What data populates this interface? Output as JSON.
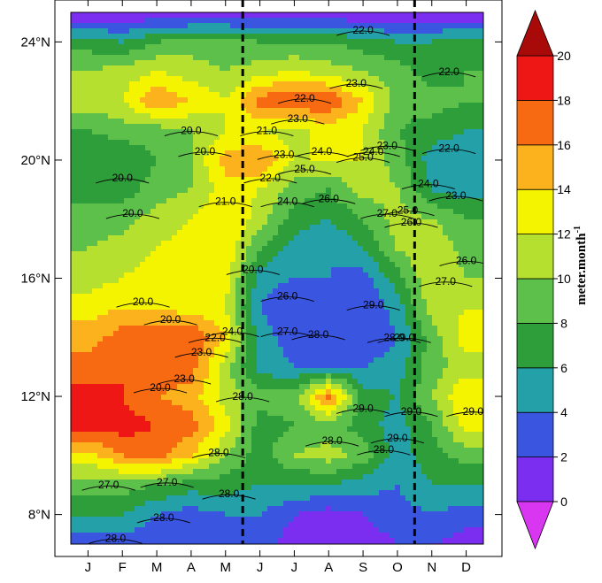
{
  "chart_data": {
    "type": "heatmap",
    "subtype": "hovmoller latitude-time with contour overlay",
    "title": "",
    "xlabel": "",
    "ylabel": "",
    "x_tick_labels": [
      "J",
      "F",
      "M",
      "A",
      "M",
      "J",
      "J",
      "A",
      "S",
      "O",
      "N",
      "D"
    ],
    "y_tick_labels": [
      "8°N",
      "12°N",
      "16°N",
      "20°N",
      "24°N"
    ],
    "y_tick_values": [
      8,
      12,
      16,
      20,
      24
    ],
    "ylim": [
      7.0,
      25.0
    ],
    "xlim": [
      0.5,
      12.5
    ],
    "colorbar": {
      "label": "meter.month",
      "label_superscript": "-1",
      "levels": [
        0,
        2,
        4,
        6,
        8,
        10,
        12,
        14,
        16,
        18,
        20
      ],
      "tick_labels": [
        "0",
        "2",
        "4",
        "6",
        "8",
        "10",
        "12",
        "14",
        "16",
        "18",
        "20"
      ],
      "extend": "both",
      "colors": [
        "#d936f2",
        "#7b2ef0",
        "#3a55e0",
        "#24a0a8",
        "#2e9e3a",
        "#5cc04a",
        "#b5e030",
        "#f4f400",
        "#fbb21c",
        "#f86a12",
        "#ef1616",
        "#a80a0a"
      ]
    },
    "dashed_vertical_lines_month": [
      5.5,
      10.5
    ],
    "heat_field": {
      "months": [
        1,
        2,
        3,
        4,
        5,
        6,
        7,
        8,
        9,
        10,
        11,
        12
      ],
      "latitudes": [
        7,
        8,
        9,
        10,
        11,
        12,
        13,
        14,
        15,
        16,
        17,
        18,
        19,
        20,
        21,
        22,
        23,
        24,
        25
      ],
      "values": [
        [
          3,
          3,
          2,
          2,
          3,
          3,
          1,
          0,
          1,
          2,
          2,
          1
        ],
        [
          6,
          6,
          4,
          3,
          4,
          4,
          2,
          1,
          2,
          3,
          4,
          3
        ],
        [
          9,
          9,
          8,
          7,
          7,
          6,
          6,
          6,
          5,
          4,
          6,
          6
        ],
        [
          13,
          16,
          17,
          14,
          10,
          7,
          10,
          11,
          9,
          5,
          7,
          9
        ],
        [
          19,
          19,
          18,
          17,
          13,
          7,
          8,
          9,
          7,
          5,
          8,
          13
        ],
        [
          19,
          18,
          16,
          15,
          11,
          9,
          9,
          17,
          7,
          6,
          10,
          14
        ],
        [
          17,
          18,
          18,
          17,
          11,
          5,
          4,
          4,
          4,
          5,
          9,
          11
        ],
        [
          15,
          17,
          17,
          18,
          14,
          5,
          3,
          3,
          2,
          4,
          9,
          13
        ],
        [
          13,
          14,
          14,
          13,
          12,
          4,
          2,
          2,
          2,
          5,
          11,
          12
        ],
        [
          11,
          12,
          13,
          14,
          13,
          5,
          4,
          4,
          3,
          7,
          12,
          10
        ],
        [
          10,
          11,
          12,
          13,
          14,
          8,
          5,
          4,
          6,
          10,
          12,
          9
        ],
        [
          9,
          9,
          11,
          12,
          14,
          11,
          7,
          6,
          8,
          11,
          10,
          8
        ],
        [
          7,
          7,
          9,
          10,
          13,
          12,
          9,
          8,
          11,
          10,
          6,
          5
        ],
        [
          6,
          6,
          8,
          10,
          15,
          16,
          12,
          12,
          12,
          9,
          5,
          4
        ],
        [
          8,
          9,
          9,
          10,
          12,
          12,
          11,
          13,
          12,
          8,
          7,
          6
        ],
        [
          11,
          12,
          16,
          14,
          12,
          17,
          18,
          18,
          14,
          9,
          9,
          8
        ],
        [
          10,
          11,
          12,
          11,
          10,
          11,
          12,
          11,
          10,
          9,
          7,
          8
        ],
        [
          7,
          6,
          8,
          9,
          9,
          8,
          8,
          8,
          7,
          6,
          6,
          7
        ],
        [
          0,
          0,
          0,
          0,
          0,
          0,
          0,
          0,
          0,
          0,
          0,
          0
        ]
      ]
    },
    "contours": [
      {
        "level": "20.0",
        "labels_at": [
          [
            2.6,
            15.2
          ],
          [
            3.4,
            14.6
          ],
          [
            4.0,
            21.0
          ],
          [
            4.4,
            20.3
          ],
          [
            2.0,
            19.4
          ],
          [
            2.3,
            18.2
          ],
          [
            5.8,
            16.3
          ]
        ]
      },
      {
        "level": "21.0",
        "labels_at": [
          [
            5.0,
            18.6
          ],
          [
            6.2,
            21.0
          ]
        ]
      },
      {
        "level": "22.0",
        "labels_at": [
          [
            6.3,
            19.4
          ],
          [
            7.3,
            22.1
          ],
          [
            9.0,
            24.4
          ],
          [
            11.5,
            23.0
          ],
          [
            11.5,
            20.4
          ],
          [
            4.7,
            14.0
          ]
        ]
      },
      {
        "level": "23.0",
        "labels_at": [
          [
            4.3,
            13.5
          ],
          [
            3.8,
            12.6
          ],
          [
            6.7,
            20.2
          ],
          [
            7.1,
            21.4
          ],
          [
            8.8,
            22.6
          ],
          [
            9.7,
            20.5
          ],
          [
            11.7,
            18.8
          ]
        ]
      },
      {
        "level": "24.0",
        "labels_at": [
          [
            5.2,
            14.2
          ],
          [
            6.8,
            18.6
          ],
          [
            7.8,
            20.3
          ],
          [
            9.3,
            20.3
          ],
          [
            10.9,
            19.2
          ]
        ]
      },
      {
        "level": "25.0",
        "labels_at": [
          [
            7.3,
            19.7
          ],
          [
            9.0,
            20.1
          ],
          [
            10.3,
            18.3
          ]
        ]
      },
      {
        "level": "26.0",
        "labels_at": [
          [
            6.8,
            15.4
          ],
          [
            8.0,
            18.7
          ],
          [
            10.4,
            17.9
          ],
          [
            12.0,
            16.6
          ]
        ]
      },
      {
        "level": "27.0",
        "labels_at": [
          [
            6.8,
            14.2
          ],
          [
            9.7,
            18.2
          ],
          [
            11.4,
            15.9
          ],
          [
            1.6,
            9.0
          ],
          [
            3.3,
            9.1
          ]
        ]
      },
      {
        "level": "28.0",
        "labels_at": [
          [
            7.7,
            14.1
          ],
          [
            5.5,
            12.0
          ],
          [
            8.1,
            10.5
          ],
          [
            9.9,
            14.0
          ],
          [
            9.6,
            10.2
          ],
          [
            5.1,
            8.7
          ],
          [
            4.8,
            10.1
          ],
          [
            3.2,
            7.9
          ],
          [
            1.8,
            7.2
          ]
        ]
      },
      {
        "level": "29.0",
        "labels_at": [
          [
            9.3,
            15.1
          ],
          [
            9.0,
            11.6
          ],
          [
            10.2,
            14.0
          ],
          [
            10.0,
            10.6
          ],
          [
            12.2,
            11.5
          ],
          [
            10.4,
            11.5
          ]
        ]
      },
      {
        "level": "20.0",
        "labels_at": [
          [
            3.1,
            12.3
          ]
        ]
      }
    ]
  }
}
